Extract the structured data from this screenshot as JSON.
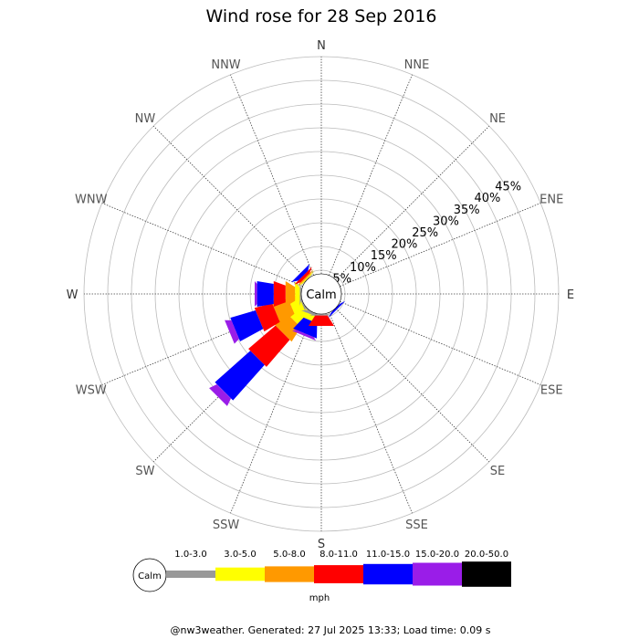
{
  "chart_data": {
    "type": "windrose",
    "title": "Wind rose for 28 Sep 2016",
    "unit": "mph",
    "center_label": "Calm",
    "directions": [
      "N",
      "NNE",
      "NE",
      "ENE",
      "E",
      "ESE",
      "SE",
      "SSE",
      "S",
      "SSW",
      "SW",
      "WSW",
      "W",
      "WNW",
      "NW",
      "NNW"
    ],
    "radial_ticks": [
      "5%",
      "10%",
      "15%",
      "20%",
      "25%",
      "30%",
      "35%",
      "40%",
      "45%"
    ],
    "radial_max": 50,
    "speed_bins": [
      {
        "label": "1.0-3.0",
        "color": "#999999"
      },
      {
        "label": "3.0-5.0",
        "color": "#ffff00"
      },
      {
        "label": "5.0-8.0",
        "color": "#ff9900"
      },
      {
        "label": "8.0-11.0",
        "color": "#ff0000"
      },
      {
        "label": "11.0-15.0",
        "color": "#0000ff"
      },
      {
        "label": "15.0-20.0",
        "color": "#9a1de8"
      },
      {
        "label": "20.0-50.0",
        "color": "#000000"
      }
    ],
    "series": [
      {
        "direction": "SW",
        "values": [
          0.3,
          3.5,
          3.5,
          7.5,
          10.0,
          1.7,
          0
        ]
      },
      {
        "direction": "WSW",
        "values": [
          0.3,
          2.3,
          3.5,
          3.8,
          5.5,
          1.3,
          0
        ]
      },
      {
        "direction": "W",
        "values": [
          0.3,
          1.0,
          2.0,
          2.5,
          3.5,
          0.5,
          0
        ]
      },
      {
        "direction": "WNW",
        "values": [
          0,
          0,
          0,
          0,
          0,
          0,
          0
        ]
      },
      {
        "direction": "NW",
        "values": [
          0.1,
          0.2,
          0.3,
          0.6,
          0.8,
          0,
          0
        ]
      },
      {
        "direction": "SSW",
        "values": [
          0.6,
          1.2,
          0,
          0,
          3.0,
          0.5,
          0
        ]
      },
      {
        "direction": "S",
        "values": [
          0.3,
          0,
          0,
          2.2,
          0,
          0,
          0
        ]
      },
      {
        "direction": "SE",
        "values": [
          0,
          0,
          0,
          0,
          0.4,
          0,
          0
        ]
      }
    ]
  },
  "footer": "@nw3weather. Generated: 27 Jul 2025 13:33; Load time: 0.09 s"
}
